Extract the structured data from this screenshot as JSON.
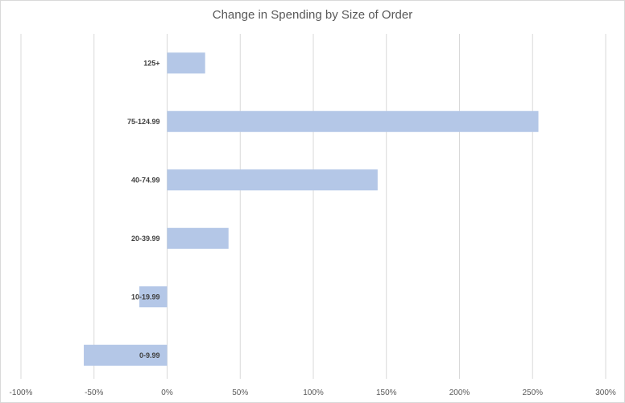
{
  "chart_data": {
    "type": "bar",
    "orientation": "horizontal",
    "title": "Change in Spending by Size of Order",
    "xlabel": "",
    "ylabel": "",
    "categories": [
      "125+",
      "75-124.99",
      "40-74.99",
      "20-39.99",
      "10-19.99",
      "0-9.99"
    ],
    "values": [
      26,
      254,
      144,
      42,
      -19,
      -57
    ],
    "value_unit": "%",
    "xlim": [
      -100,
      300
    ],
    "xticks": [
      "-100%",
      "-50%",
      "0%",
      "50%",
      "100%",
      "150%",
      "200%",
      "250%",
      "300%"
    ],
    "xtick_values": [
      -100,
      -50,
      0,
      50,
      100,
      150,
      200,
      250,
      300
    ],
    "grid": "vertical",
    "legend": "none",
    "colors": {
      "bar": "#b4c7e7",
      "grid": "#d9d9d9",
      "text": "#595959",
      "category_text": "#404040"
    }
  }
}
